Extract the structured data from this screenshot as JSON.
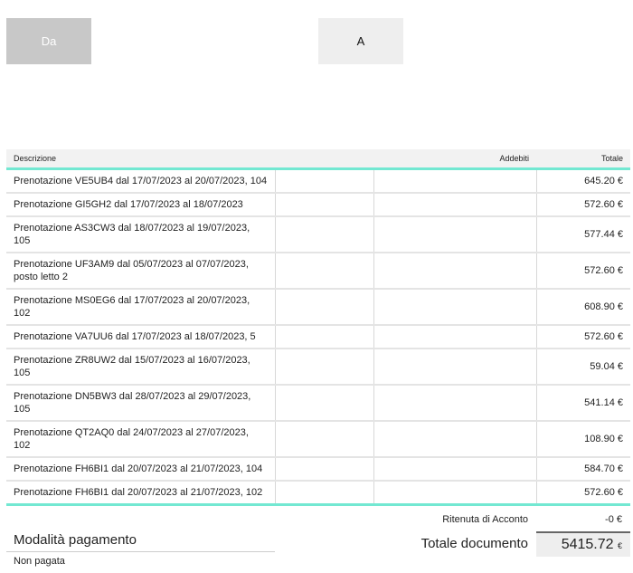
{
  "header": {
    "from_label": "Da",
    "to_label": "A"
  },
  "table": {
    "columns": [
      "Descrizione",
      "Addebiti",
      "Totale"
    ],
    "rows": [
      {
        "desc": "Prenotazione VE5UB4 dal 17/07/2023 al 20/07/2023, 104",
        "total": "645.20 €"
      },
      {
        "desc": "Prenotazione GI5GH2 dal 17/07/2023 al 18/07/2023",
        "total": "572.60 €"
      },
      {
        "desc": "Prenotazione AS3CW3 dal 18/07/2023 al 19/07/2023, 105",
        "total": "577.44 €"
      },
      {
        "desc": "Prenotazione UF3AM9 dal 05/07/2023 al 07/07/2023, posto letto 2",
        "total": "572.60 €"
      },
      {
        "desc": "Prenotazione MS0EG6 dal 17/07/2023 al 20/07/2023, 102",
        "total": "608.90 €"
      },
      {
        "desc": "Prenotazione VA7UU6 dal 17/07/2023 al 18/07/2023, 5",
        "total": "572.60 €"
      },
      {
        "desc": "Prenotazione ZR8UW2 dal 15/07/2023 al 16/07/2023, 105",
        "total": "59.04 €"
      },
      {
        "desc": "Prenotazione DN5BW3 dal 28/07/2023 al 29/07/2023, 105",
        "total": "541.14 €"
      },
      {
        "desc": "Prenotazione QT2AQ0 dal 24/07/2023 al 27/07/2023, 102",
        "total": "108.90 €"
      },
      {
        "desc": "Prenotazione FH6BI1 dal 20/07/2023 al 21/07/2023, 104",
        "total": "584.70 €"
      },
      {
        "desc": "Prenotazione FH6BI1 dal 20/07/2023 al 21/07/2023, 102",
        "total": "572.60 €"
      }
    ]
  },
  "summary": {
    "ritenuta_label": "Ritenuta di Acconto",
    "ritenuta_value": "-0 €",
    "total_label": "Totale documento",
    "total_value": "5415.72",
    "currency": "€"
  },
  "payment": {
    "title": "Modalità pagamento",
    "status": "Non pagata"
  },
  "colors": {
    "accent": "#73e8d2"
  }
}
